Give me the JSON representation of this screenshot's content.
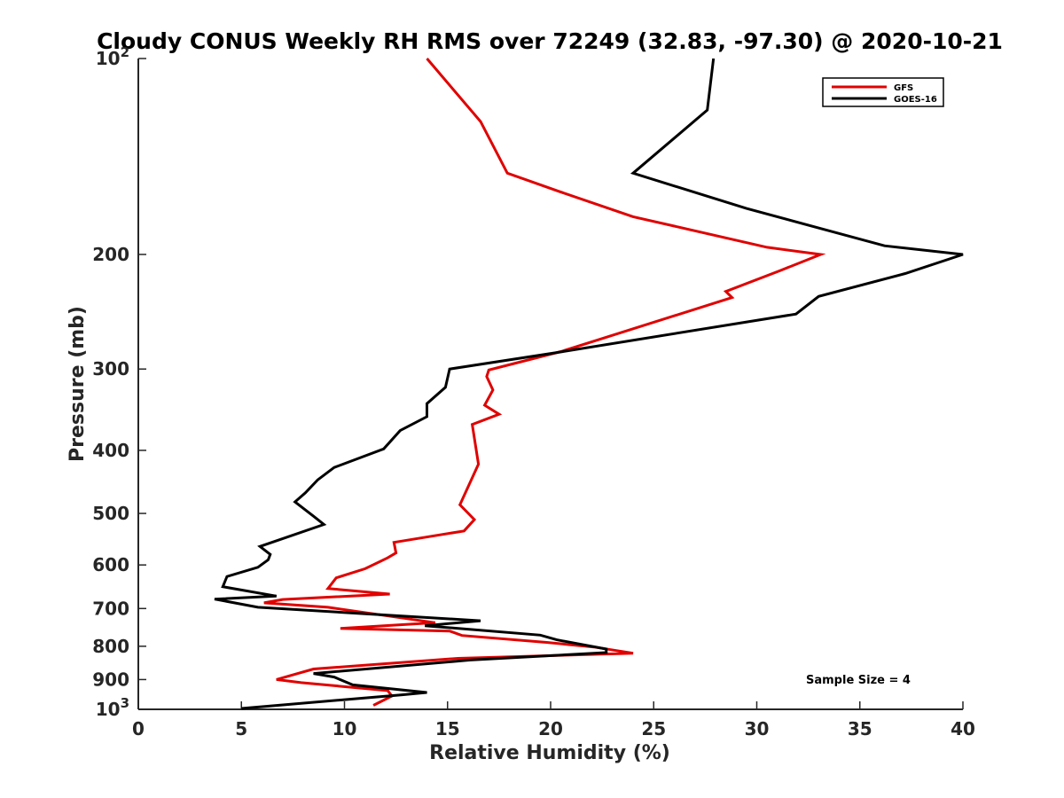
{
  "chart_data": {
    "type": "line",
    "title": "Cloudy CONUS Weekly RH RMS over 72249 (32.83, -97.30) @ 2020-10-21",
    "xlabel": "Relative Humidity (%)",
    "ylabel": "Pressure (mb)",
    "xlim": [
      0,
      40
    ],
    "ylim": [
      100,
      1000
    ],
    "y_scale": "log",
    "y_reversed": true,
    "x_ticks": [
      "0",
      "5",
      "10",
      "15",
      "20",
      "25",
      "30",
      "35",
      "40"
    ],
    "y_ticks": [
      {
        "value": 100,
        "base": "10",
        "exp": "2"
      },
      {
        "value": 200,
        "label": "200"
      },
      {
        "value": 300,
        "label": "300"
      },
      {
        "value": 400,
        "label": "400"
      },
      {
        "value": 500,
        "label": "500"
      },
      {
        "value": 600,
        "label": "600"
      },
      {
        "value": 700,
        "label": "700"
      },
      {
        "value": 800,
        "label": "800"
      },
      {
        "value": 900,
        "label": "900"
      },
      {
        "value": 1000,
        "base": "10",
        "exp": "3"
      }
    ],
    "legend_position": "top-right",
    "grid": false,
    "annotation": "Sample Size = 4",
    "series": [
      {
        "name": "GFS",
        "color": "#e00000",
        "points": [
          [
            14.0,
            100
          ],
          [
            16.6,
            125
          ],
          [
            17.9,
            150
          ],
          [
            20.4,
            160
          ],
          [
            24.0,
            175
          ],
          [
            30.5,
            195
          ],
          [
            33.1,
            200
          ],
          [
            31.1,
            212
          ],
          [
            28.5,
            228
          ],
          [
            28.8,
            233
          ],
          [
            20.5,
            282
          ],
          [
            17.0,
            301
          ],
          [
            16.9,
            308
          ],
          [
            17.2,
            323
          ],
          [
            16.8,
            341
          ],
          [
            17.5,
            352
          ],
          [
            16.2,
            365
          ],
          [
            16.5,
            420
          ],
          [
            15.6,
            485
          ],
          [
            16.3,
            511
          ],
          [
            15.8,
            532
          ],
          [
            12.4,
            554
          ],
          [
            12.5,
            575
          ],
          [
            12.1,
            585
          ],
          [
            11.0,
            608
          ],
          [
            9.6,
            628
          ],
          [
            9.2,
            652
          ],
          [
            12.2,
            665
          ],
          [
            9.4,
            672
          ],
          [
            7.0,
            678
          ],
          [
            6.1,
            686
          ],
          [
            9.2,
            697
          ],
          [
            14.4,
            736
          ],
          [
            9.8,
            751
          ],
          [
            15.1,
            758
          ],
          [
            15.7,
            770
          ],
          [
            19.8,
            789
          ],
          [
            22.1,
            802
          ],
          [
            24.0,
            820
          ],
          [
            15.5,
            835
          ],
          [
            8.5,
            867
          ],
          [
            6.7,
            900
          ],
          [
            7.9,
            910
          ],
          [
            12.1,
            936
          ],
          [
            12.3,
            954
          ],
          [
            11.4,
            986
          ]
        ]
      },
      {
        "name": "GOES-16",
        "color": "#000000",
        "points": [
          [
            27.9,
            100
          ],
          [
            27.6,
            120
          ],
          [
            24.0,
            150
          ],
          [
            29.5,
            170
          ],
          [
            36.2,
            194
          ],
          [
            40.0,
            200
          ],
          [
            37.2,
            214
          ],
          [
            33.0,
            232
          ],
          [
            31.9,
            247
          ],
          [
            20.3,
            283
          ],
          [
            15.1,
            300
          ],
          [
            14.9,
            320
          ],
          [
            14.0,
            339
          ],
          [
            14.0,
            355
          ],
          [
            12.7,
            373
          ],
          [
            11.9,
            398
          ],
          [
            9.5,
            425
          ],
          [
            8.7,
            444
          ],
          [
            8.1,
            465
          ],
          [
            7.6,
            480
          ],
          [
            8.5,
            505
          ],
          [
            9.0,
            520
          ],
          [
            5.9,
            562
          ],
          [
            6.4,
            578
          ],
          [
            6.3,
            589
          ],
          [
            5.8,
            605
          ],
          [
            4.3,
            625
          ],
          [
            4.1,
            648
          ],
          [
            6.7,
            670
          ],
          [
            3.7,
            677
          ],
          [
            5.8,
            697
          ],
          [
            16.6,
            731
          ],
          [
            13.9,
            744
          ],
          [
            19.5,
            769
          ],
          [
            20.3,
            782
          ],
          [
            22.7,
            808
          ],
          [
            22.7,
            818
          ],
          [
            16.1,
            840
          ],
          [
            8.5,
            881
          ],
          [
            9.5,
            892
          ],
          [
            10.4,
            917
          ],
          [
            14.0,
            942
          ],
          [
            12.8,
            950
          ],
          [
            5.0,
            997
          ]
        ]
      }
    ]
  }
}
